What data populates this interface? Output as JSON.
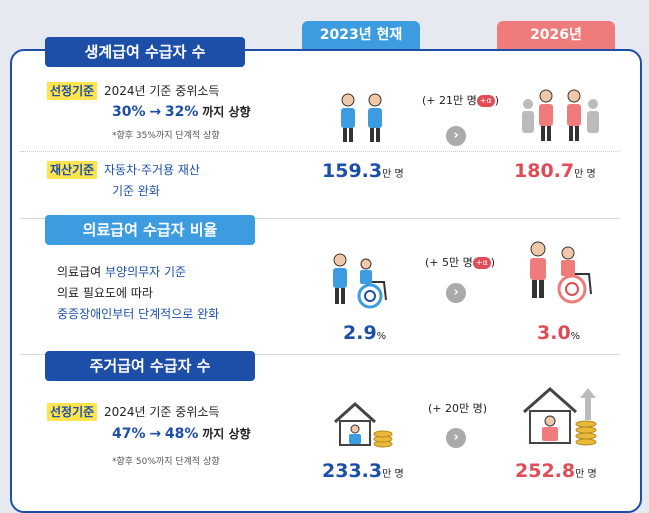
{
  "columns": {
    "current": "2023년 현재",
    "target": "2026년"
  },
  "sections": [
    {
      "title": "생계급여 수급자 수",
      "criterion1": {
        "tag": "선정기준",
        "line1": "2024년 기준 중위소득",
        "from": "30%",
        "arrow": "→",
        "to": "32%",
        "suffix": "까지 상향",
        "note": "*향후 35%까지 단계적 상향"
      },
      "criterion2": {
        "tag": "재산기준",
        "line1": "자동차·주거용 재산",
        "line2": "기준 완화"
      },
      "current_value": "159.3",
      "current_unit": "만 명",
      "increase": "(+ 21만 명",
      "increase_alpha": "+α",
      "increase_close": ")",
      "target_value": "180.7",
      "target_unit": "만 명"
    },
    {
      "title": "의료급여 수급자 비율",
      "desc1_prefix": "의료급여 ",
      "desc1_highlight": "부양의무자 기준",
      "desc2": "의료 필요도에 따라",
      "desc3": "중증장애인부터 단계적으로 완화",
      "current_value": "2.9",
      "current_unit": "%",
      "increase": "(+ 5만 명",
      "increase_alpha": "+α",
      "increase_close": ")",
      "target_value": "3.0",
      "target_unit": "%"
    },
    {
      "title": "주거급여 수급자 수",
      "criterion1": {
        "tag": "선정기준",
        "line1": "2024년 기준 중위소득",
        "from": "47%",
        "arrow": "→",
        "to": "48%",
        "suffix": "까지 상향",
        "note": "*향후 50%까지 단계적 상향"
      },
      "current_value": "233.3",
      "current_unit": "만 명",
      "increase": "(+ 20만 명)",
      "target_value": "252.8",
      "target_unit": "만 명"
    }
  ],
  "icons": {
    "arrow": "arrow-right-circle-icon",
    "people": "people-icon",
    "care": "caregiver-wheelchair-icon",
    "house": "house-coins-icon"
  },
  "colors": {
    "navy": "#1d4fa8",
    "sky": "#3d9be0",
    "coral": "#f07b7b",
    "red": "#e14d57",
    "yellow": "#ffe44d"
  }
}
